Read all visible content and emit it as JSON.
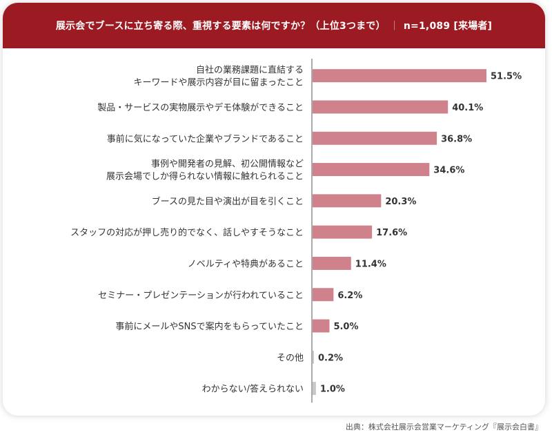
{
  "header": {
    "question": "展示会でブースに立ち寄る際、重視する要素は何ですか？（上位3つまで）",
    "separator": "｜",
    "sample": "n=1,089 [来場者]"
  },
  "colors": {
    "header_bg": "#9c1b22",
    "bar": "#cf828b",
    "bar_minor": "#c8c8c8",
    "axis": "#555555"
  },
  "chart_data": {
    "type": "bar",
    "orientation": "horizontal",
    "categories": [
      "自社の業務課題に直結する\nキーワードや展示内容が目に留まったこと",
      "製品・サービスの実物展示やデモ体験ができること",
      "事前に気になっていた企業やブランドであること",
      "事例や開発者の見解、初公開情報など\n展示会場でしか得られない情報に触れられること",
      "ブースの見た目や演出が目を引くこと",
      "スタッフの対応が押し売り的でなく、話しやすそうなこと",
      "ノベルティや特典があること",
      "セミナー・プレゼンテーションが行われていること",
      "事前にメールやSNSで案内をもらっていたこと",
      "その他",
      "わからない/答えられない"
    ],
    "values": [
      51.5,
      40.1,
      36.8,
      34.6,
      20.3,
      17.6,
      11.4,
      6.2,
      5.0,
      0.2,
      1.0
    ],
    "value_labels": [
      "51.5%",
      "40.1%",
      "36.8%",
      "34.6%",
      "20.3%",
      "17.6%",
      "11.4%",
      "6.2%",
      "5.0%",
      "0.2%",
      "1.0%"
    ],
    "unit": "%",
    "xlim": [
      0,
      60
    ],
    "grid": false,
    "legend": "none"
  },
  "source": "出典：株式会社展示会営業マーケティング『展示会白書』"
}
